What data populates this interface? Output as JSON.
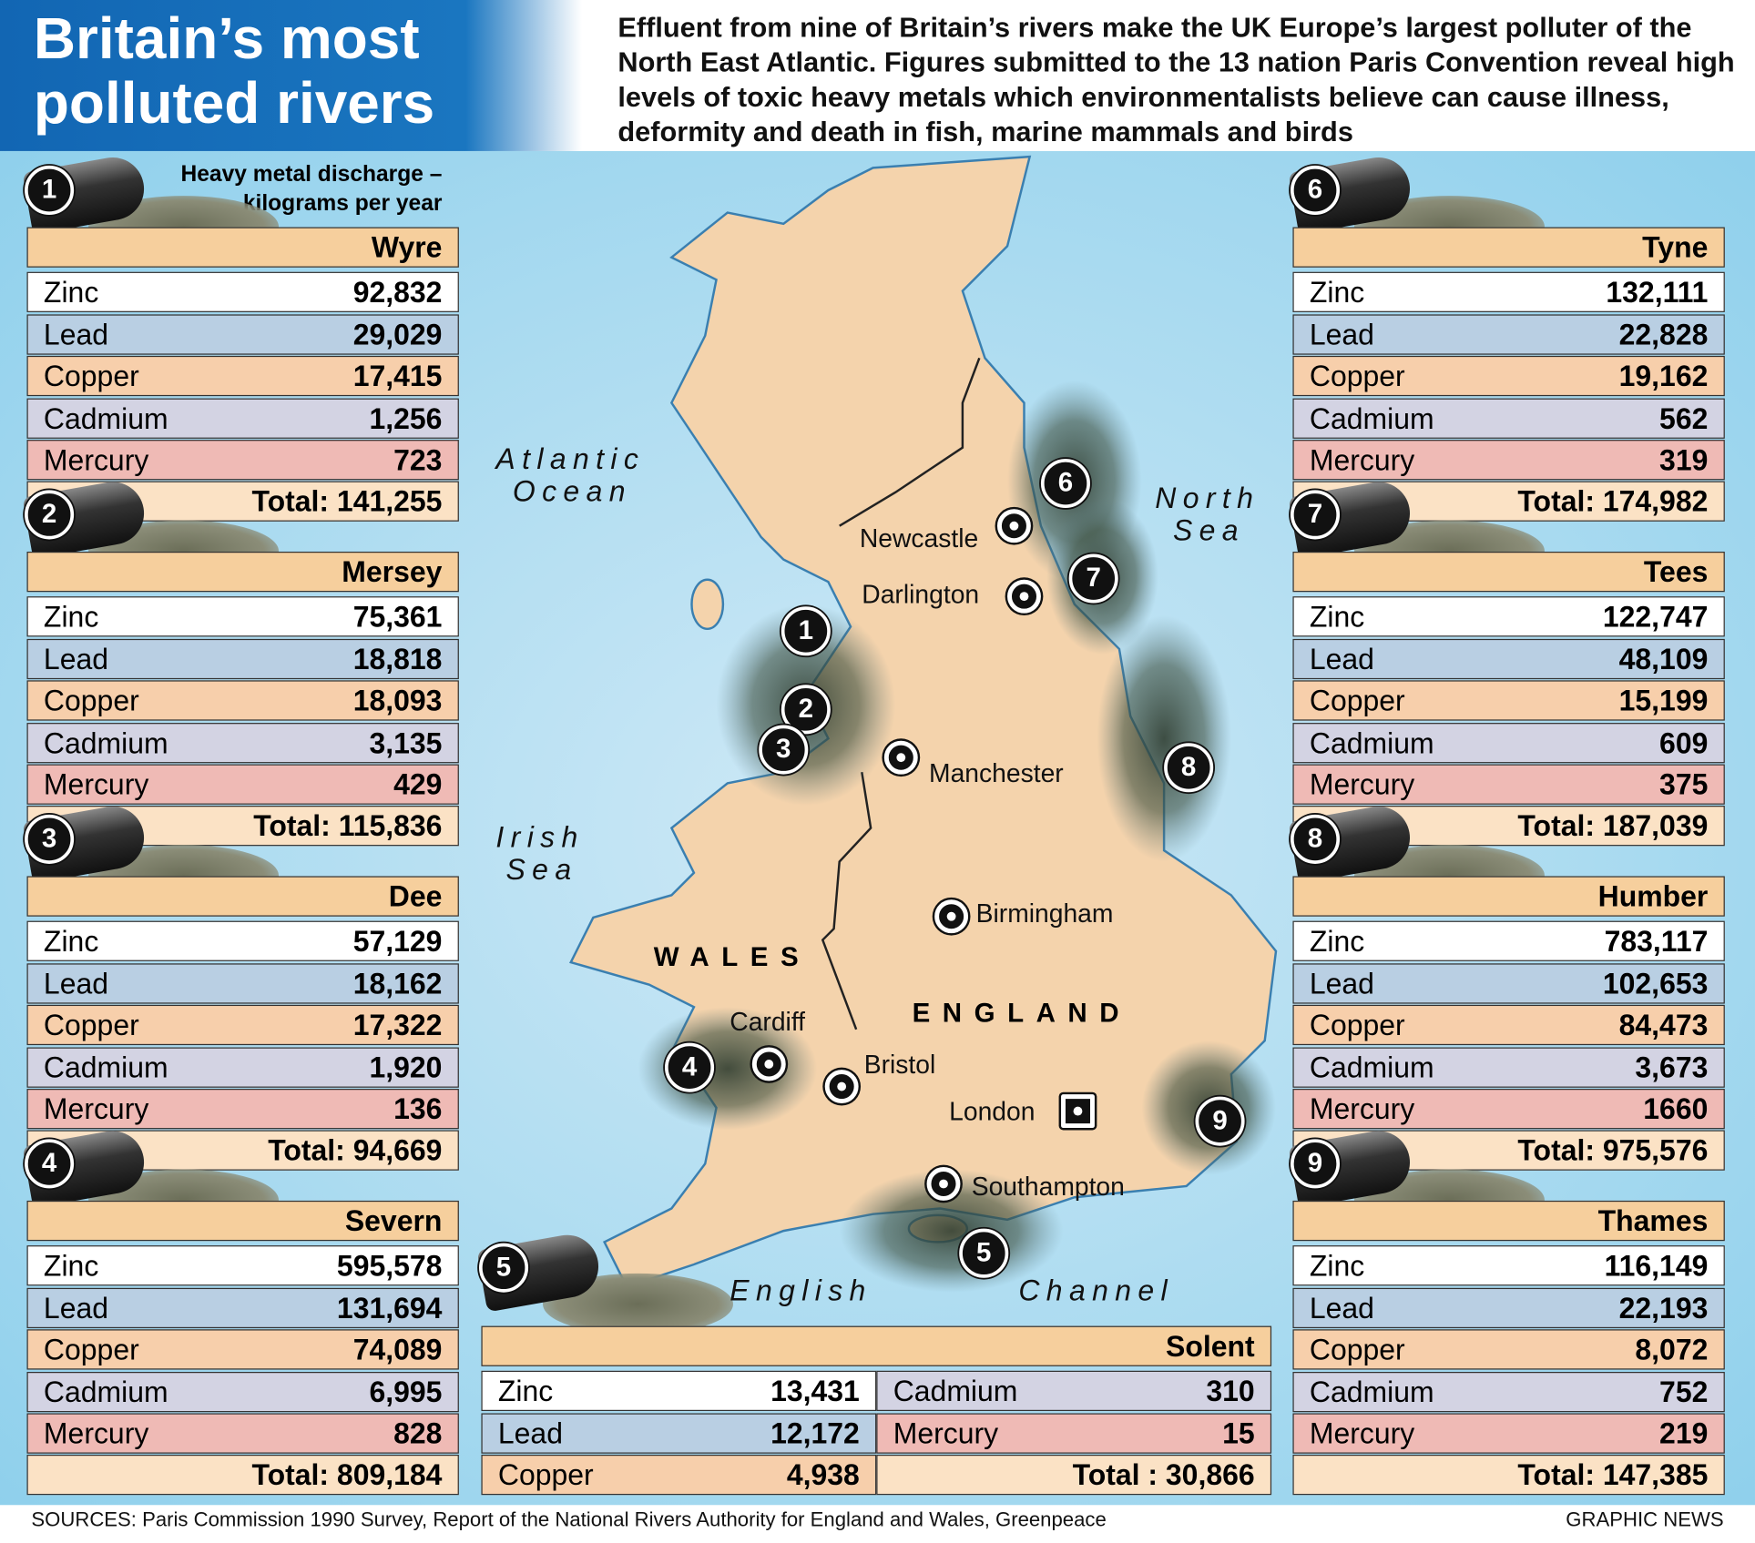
{
  "header": {
    "title": [
      "Britain’s most",
      "polluted rivers"
    ],
    "intro": "Effluent from nine of Britain’s rivers make the UK Europe’s largest polluter of the North East Atlantic. Figures submitted to the 13 nation Paris Convention reveal high levels of toxic heavy metals which environmentalists believe can cause illness, deformity and death in fish, marine mammals and birds",
    "units_note": "Heavy metal discharge – kilograms per year"
  },
  "metals": [
    "Zinc",
    "Lead",
    "Copper",
    "Cadmium",
    "Mercury"
  ],
  "rivers": [
    {
      "number": 1,
      "name": "Wyre",
      "values": [
        "92,832",
        "29,029",
        "17,415",
        "1,256",
        "723"
      ],
      "total": "Total: 141,255"
    },
    {
      "number": 2,
      "name": "Mersey",
      "values": [
        "75,361",
        "18,818",
        "18,093",
        "3,135",
        "429"
      ],
      "total": "Total: 115,836"
    },
    {
      "number": 3,
      "name": "Dee",
      "values": [
        "57,129",
        "18,162",
        "17,322",
        "1,920",
        "136"
      ],
      "total": "Total: 94,669"
    },
    {
      "number": 4,
      "name": "Severn",
      "values": [
        "595,578",
        "131,694",
        "74,089",
        "6,995",
        "828"
      ],
      "total": "Total: 809,184"
    },
    {
      "number": 5,
      "name": "Solent",
      "values": [
        "13,431",
        "12,172",
        "4,938",
        "310",
        "15"
      ],
      "total": "Total : 30,866"
    },
    {
      "number": 6,
      "name": "Tyne",
      "values": [
        "132,111",
        "22,828",
        "19,162",
        "562",
        "319"
      ],
      "total": "Total: 174,982"
    },
    {
      "number": 7,
      "name": "Tees",
      "values": [
        "122,747",
        "48,109",
        "15,199",
        "609",
        "375"
      ],
      "total": "Total: 187,039"
    },
    {
      "number": 8,
      "name": "Humber",
      "values": [
        "783,117",
        "102,653",
        "84,473",
        "3,673",
        "1660"
      ],
      "total": "Total: 975,576"
    },
    {
      "number": 9,
      "name": "Thames",
      "values": [
        "116,149",
        "22,193",
        "8,072",
        "752",
        "219"
      ],
      "total": "Total: 147,385"
    }
  ],
  "map": {
    "seas": [
      "Atlantic",
      "Ocean",
      "North",
      "Sea",
      "Irish",
      "Sea",
      "English",
      "Channel"
    ],
    "countries": [
      "WALES",
      "ENGLAND"
    ],
    "cities": [
      "Newcastle",
      "Darlington",
      "Manchester",
      "Birmingham",
      "Cardiff",
      "Bristol",
      "London",
      "Southampton"
    ]
  },
  "footer": {
    "sources": "SOURCES: Paris Commission 1990 Survey, Report of the National Rivers Authority for England and Wales, Greenpeace",
    "credit": "GRAPHIC NEWS"
  }
}
